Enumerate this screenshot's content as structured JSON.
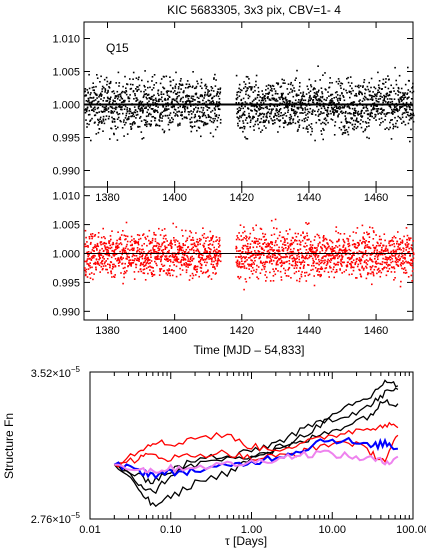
{
  "title": "KIC 5683305,  3x3 pix, CBV=1- 4",
  "chart_data": [
    {
      "type": "scatter",
      "annotation": "Q15",
      "series": [
        {
          "color": "#000000",
          "reference_line": 1.0
        }
      ],
      "xlim": [
        1373,
        1471
      ],
      "ylim": [
        0.9875,
        1.0125
      ],
      "x_ticks": [
        "1380",
        "1400",
        "1420",
        "1440",
        "1460"
      ],
      "x_tick_values": [
        1380,
        1400,
        1420,
        1440,
        1460
      ],
      "y_ticks": [
        "1.010",
        "1.005",
        "1.000",
        "0.995",
        "0.990"
      ],
      "y_tick_values": [
        1.01,
        1.005,
        1.0,
        0.995,
        0.99
      ],
      "scatter_half_width": 0.0045,
      "gaps": [
        [
          1413.5,
          1418.0
        ]
      ]
    },
    {
      "type": "scatter",
      "series": [
        {
          "color": "#ff0000",
          "reference_line": 1.0
        }
      ],
      "xlim": [
        1373,
        1471
      ],
      "ylim": [
        0.9885,
        1.0115
      ],
      "xlabel": "Time [MJD – 54,833]",
      "x_ticks": [
        "1380",
        "1400",
        "1420",
        "1440",
        "1460"
      ],
      "x_tick_values": [
        1380,
        1400,
        1420,
        1440,
        1460
      ],
      "y_ticks": [
        "1.010",
        "1.005",
        "1.000",
        "0.995",
        "0.990"
      ],
      "y_tick_values": [
        1.01,
        1.005,
        1.0,
        0.995,
        0.99
      ],
      "scatter_half_width": 0.0045,
      "gaps": [
        [
          1413.5,
          1418.0
        ]
      ]
    },
    {
      "type": "line",
      "x_scale": "log",
      "y_scale": "log",
      "xlim": [
        0.01,
        100
      ],
      "ylim": [
        2.76e-05,
        3.52e-05
      ],
      "xlabel": "τ [Days]",
      "ylabel": "Structure Fn",
      "x_ticks": [
        "0.01",
        "0.10",
        "1.00",
        "10.00",
        "100.00"
      ],
      "x_tick_values": [
        0.01,
        0.1,
        1,
        10,
        100
      ],
      "y_tick_labels": [
        {
          "mantissa": "3.52×10",
          "exponent": "−5"
        },
        {
          "mantissa": "2.76×10",
          "exponent": "−5"
        }
      ],
      "series": [
        {
          "color": "#000000",
          "x": [
            0.02,
            0.04,
            0.06,
            0.1,
            0.2,
            0.5,
            1,
            2,
            4,
            8,
            16,
            30,
            45,
            65
          ],
          "y": [
            3.02e-05,
            2.9e-05,
            2.82e-05,
            2.86e-05,
            2.93e-05,
            2.98e-05,
            3.05e-05,
            3.1e-05,
            3.16e-05,
            3.24e-05,
            3.32e-05,
            3.38e-05,
            3.47e-05,
            3.44e-05
          ]
        },
        {
          "color": "#000000",
          "x": [
            0.02,
            0.04,
            0.06,
            0.1,
            0.2,
            0.5,
            1,
            2,
            4,
            8,
            16,
            30,
            45,
            65
          ],
          "y": [
            3.02e-05,
            2.93e-05,
            2.88e-05,
            2.97e-05,
            3.02e-05,
            3.05e-05,
            3.09e-05,
            3.13e-05,
            3.19e-05,
            3.25e-05,
            3.28e-05,
            3.33e-05,
            3.4e-05,
            3.42e-05
          ]
        },
        {
          "color": "#000000",
          "x": [
            0.02,
            0.04,
            0.06,
            0.1,
            0.2,
            0.5,
            1,
            2,
            4,
            8,
            16,
            30,
            45,
            65
          ],
          "y": [
            3.02e-05,
            2.96e-05,
            2.94e-05,
            2.99e-05,
            3.04e-05,
            3.07e-05,
            3.06e-05,
            3.09e-05,
            3.13e-05,
            3.18e-05,
            3.23e-05,
            3.28e-05,
            3.36e-05,
            3.34e-05
          ]
        },
        {
          "color": "#ff0000",
          "x": [
            0.02,
            0.04,
            0.06,
            0.1,
            0.2,
            0.5,
            1,
            2,
            4,
            8,
            16,
            30,
            45,
            65
          ],
          "y": [
            3.02e-05,
            3.09e-05,
            3.14e-05,
            3.12e-05,
            3.16e-05,
            3.17e-05,
            3.11e-05,
            3.1e-05,
            3.12e-05,
            3.16e-05,
            3.19e-05,
            3.21e-05,
            3.23e-05,
            3.21e-05
          ]
        },
        {
          "color": "#ff0000",
          "x": [
            0.02,
            0.04,
            0.06,
            0.1,
            0.2,
            0.5,
            1,
            2,
            4,
            8,
            16,
            30,
            45,
            65
          ],
          "y": [
            3.02e-05,
            3.05e-05,
            3.07e-05,
            3.05e-05,
            3.07e-05,
            3.08e-05,
            3.05e-05,
            3.06e-05,
            3.08e-05,
            3.12e-05,
            3.14e-05,
            3.08e-05,
            3.04e-05,
            3.17e-05
          ]
        },
        {
          "color": "#0000ff",
          "x": [
            0.02,
            0.04,
            0.06,
            0.1,
            0.2,
            0.5,
            1,
            2,
            4,
            8,
            16,
            30,
            45,
            65
          ],
          "y": [
            3.02e-05,
            2.99e-05,
            2.97e-05,
            2.98e-05,
            2.99e-05,
            3.01e-05,
            3.03e-05,
            3.06e-05,
            3.09e-05,
            3.15e-05,
            3.14e-05,
            3.11e-05,
            3.13e-05,
            3.1e-05
          ]
        },
        {
          "color": "#ee82ee",
          "x": [
            0.02,
            0.04,
            0.06,
            0.1,
            0.2,
            0.5,
            1,
            2,
            4,
            8,
            16,
            30,
            45,
            65
          ],
          "y": [
            3.02e-05,
            3e-05,
            2.99e-05,
            3e-05,
            3.01e-05,
            3.02e-05,
            3.03e-05,
            3.05e-05,
            3.07e-05,
            3.08e-05,
            3.06e-05,
            3.05e-05,
            3.03e-05,
            3.06e-05
          ]
        }
      ]
    }
  ]
}
